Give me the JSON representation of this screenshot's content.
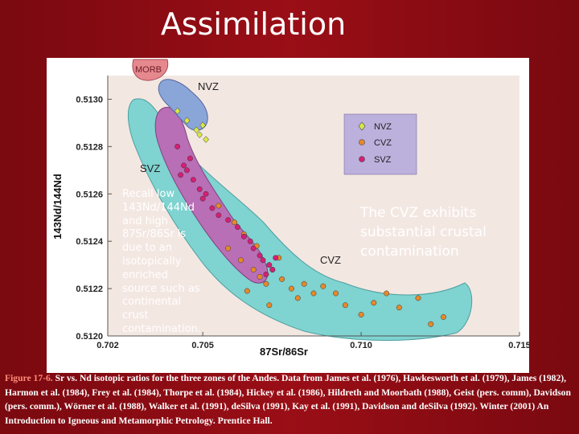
{
  "slide": {
    "title": "Assimilation",
    "note": "Recall low 143Nd/144Nd and high 87Sr/86Sr is due to an isotopically enriched source such as continental crust contamination.",
    "callout": "The CVZ exhibits substantial crustal contamination",
    "caption_lead": "Figure 17-6.",
    "caption_body": " Sr vs. Nd isotopic ratios for the three zones of the Andes. Data from James et al. (1976), Hawkesworth et al. (1979), James (1982), Harmon et al. (1984), Frey et al. (1984), Thorpe et al. (1984), Hickey et al. (1986), Hildreth and Moorbath (1988), Geist (pers. comm), Davidson (pers. comm.), Wörner et al. (1988), Walker et al. (1991), deSilva (1991), Kay et al. (1991), Davidson and deSilva (1992). Winter (2001) An Introduction to Igneous and Metamorphic Petrology. Prentice Hall."
  },
  "chart_data": {
    "type": "scatter",
    "xlabel": "87Sr/86Sr",
    "ylabel": "143Nd/144Nd",
    "xlim": [
      0.702,
      0.715
    ],
    "ylim": [
      0.512,
      0.5131
    ],
    "xticks": [
      "0.702",
      "0.705",
      "0.710",
      "0.715"
    ],
    "yticks": [
      "0.5130",
      "0.5128",
      "0.5126",
      "0.5124",
      "0.5122",
      "0.5120"
    ],
    "field_labels": [
      "MORB",
      "NVZ",
      "SVZ",
      "CVZ"
    ],
    "legend_position": "top-right",
    "colors": {
      "panel": "#f3e7e2",
      "cvz_field": "#7fd3d0",
      "svz_field": "#b96fb6",
      "nvz_field": "#8aa5d8",
      "morb_field": "#e6898f",
      "nvz_point": "#d8e84a",
      "cvz_point": "#e6892a",
      "svz_point": "#d41f75",
      "legend_bg": "#bcb0dc"
    },
    "series": [
      {
        "name": "NVZ",
        "marker": "diamond",
        "points": [
          [
            0.7042,
            0.51295
          ],
          [
            0.7045,
            0.51291
          ],
          [
            0.7048,
            0.51287
          ],
          [
            0.705,
            0.51289
          ],
          [
            0.7051,
            0.51283
          ],
          [
            0.7049,
            0.51285
          ]
        ]
      },
      {
        "name": "CVZ",
        "marker": "circle",
        "points": [
          [
            0.7055,
            0.51255
          ],
          [
            0.706,
            0.51248
          ],
          [
            0.7063,
            0.51243
          ],
          [
            0.7058,
            0.51237
          ],
          [
            0.7062,
            0.51232
          ],
          [
            0.7066,
            0.51228
          ],
          [
            0.7068,
            0.51225
          ],
          [
            0.7072,
            0.51228
          ],
          [
            0.707,
            0.51222
          ],
          [
            0.7075,
            0.51224
          ],
          [
            0.7078,
            0.5122
          ],
          [
            0.7082,
            0.51222
          ],
          [
            0.7085,
            0.51218
          ],
          [
            0.708,
            0.51216
          ],
          [
            0.7088,
            0.51221
          ],
          [
            0.7092,
            0.51218
          ],
          [
            0.7095,
            0.51213
          ],
          [
            0.71,
            0.51209
          ],
          [
            0.7104,
            0.51214
          ],
          [
            0.7108,
            0.51218
          ],
          [
            0.7112,
            0.51212
          ],
          [
            0.7118,
            0.51216
          ],
          [
            0.7122,
            0.51205
          ],
          [
            0.7126,
            0.51208
          ],
          [
            0.7074,
            0.51233
          ],
          [
            0.7067,
            0.51238
          ],
          [
            0.7071,
            0.51213
          ],
          [
            0.7064,
            0.51219
          ]
        ]
      },
      {
        "name": "SVZ",
        "marker": "circle",
        "points": [
          [
            0.7042,
            0.5128
          ],
          [
            0.7044,
            0.51272
          ],
          [
            0.7046,
            0.51275
          ],
          [
            0.7043,
            0.51268
          ],
          [
            0.7047,
            0.51266
          ],
          [
            0.7049,
            0.51262
          ],
          [
            0.705,
            0.51258
          ],
          [
            0.7053,
            0.51254
          ],
          [
            0.7055,
            0.51251
          ],
          [
            0.7058,
            0.51249
          ],
          [
            0.7061,
            0.51246
          ],
          [
            0.7063,
            0.51242
          ],
          [
            0.7065,
            0.5124
          ],
          [
            0.7066,
            0.51237
          ],
          [
            0.7068,
            0.51234
          ],
          [
            0.7069,
            0.51232
          ],
          [
            0.7071,
            0.5123
          ],
          [
            0.7072,
            0.51228
          ],
          [
            0.707,
            0.51226
          ],
          [
            0.7073,
            0.51233
          ],
          [
            0.7045,
            0.5127
          ],
          [
            0.7051,
            0.5126
          ]
        ]
      }
    ]
  }
}
